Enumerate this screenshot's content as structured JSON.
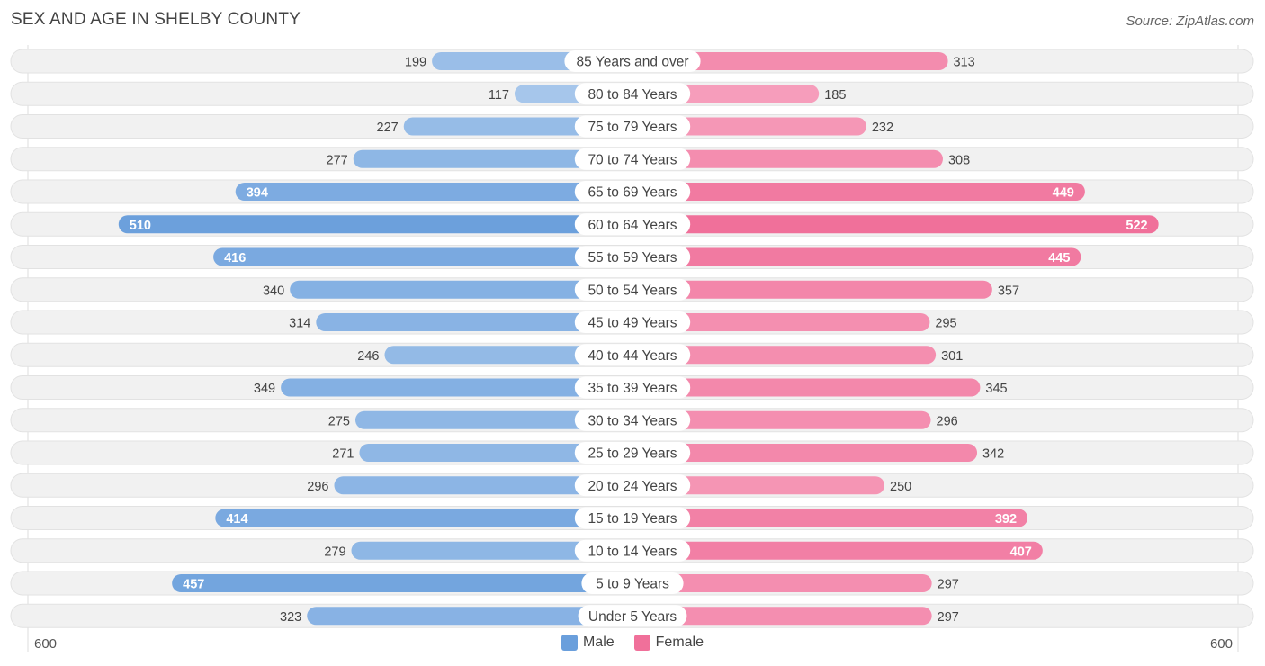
{
  "title": "SEX AND AGE IN SHELBY COUNTY",
  "source": "Source: ZipAtlas.com",
  "colors": {
    "male_light": "#a9c8ec",
    "male_dark": "#6a9fdc",
    "female_light": "#f7a9c3",
    "female_dark": "#f0709a",
    "row_bg": "#f0f0f0"
  },
  "legend": {
    "male": "Male",
    "female": "Female"
  },
  "axis": {
    "left_label": "600",
    "right_label": "600"
  },
  "chart_data": {
    "type": "bar",
    "orientation": "horizontal-butterfly",
    "xlim": [
      0,
      600
    ],
    "categories": [
      "85 Years and over",
      "80 to 84 Years",
      "75 to 79 Years",
      "70 to 74 Years",
      "65 to 69 Years",
      "60 to 64 Years",
      "55 to 59 Years",
      "50 to 54 Years",
      "45 to 49 Years",
      "40 to 44 Years",
      "35 to 39 Years",
      "30 to 34 Years",
      "25 to 29 Years",
      "20 to 24 Years",
      "15 to 19 Years",
      "10 to 14 Years",
      "5 to 9 Years",
      "Under 5 Years"
    ],
    "series": [
      {
        "name": "Male",
        "values": [
          199,
          117,
          227,
          277,
          394,
          510,
          416,
          340,
          314,
          246,
          349,
          275,
          271,
          296,
          414,
          279,
          457,
          323
        ]
      },
      {
        "name": "Female",
        "values": [
          313,
          185,
          232,
          308,
          449,
          522,
          445,
          357,
          295,
          301,
          345,
          296,
          342,
          250,
          392,
          407,
          297,
          297
        ]
      }
    ]
  }
}
